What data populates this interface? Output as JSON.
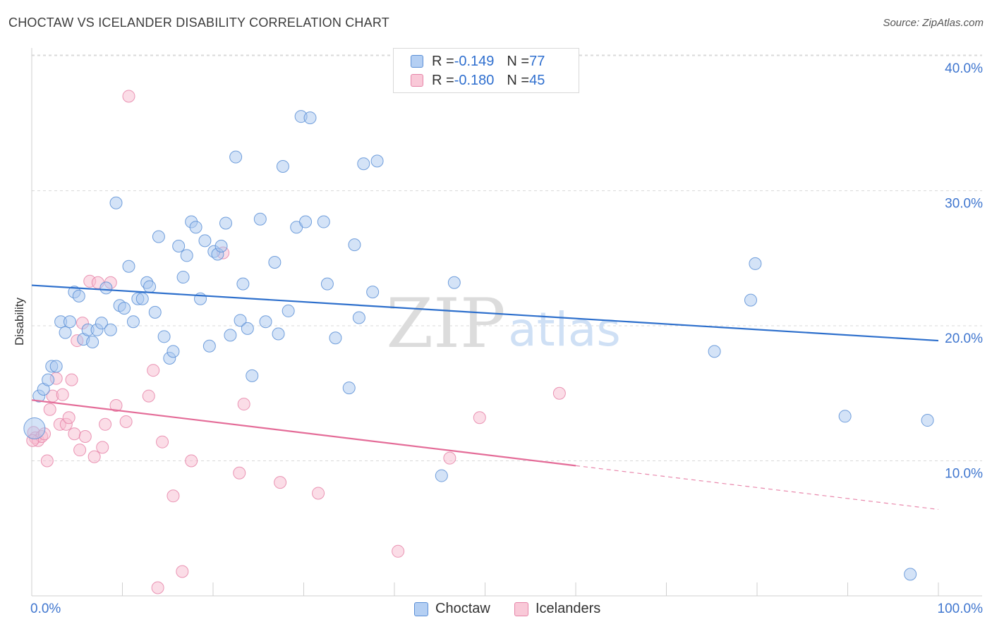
{
  "title": "CHOCTAW VS ICELANDER DISABILITY CORRELATION CHART",
  "source": "Source: ZipAtlas.com",
  "watermark": {
    "zip": "ZIP",
    "atlas": "atlas"
  },
  "legend": {
    "choctaw": {
      "r_label": "R = ",
      "r_value": "-0.149",
      "n_label": "N = ",
      "n_value": "77"
    },
    "icelanders": {
      "r_label": "R = ",
      "r_value": "-0.180",
      "n_label": "N = ",
      "n_value": "45"
    }
  },
  "colors": {
    "choctaw_fill": "#aac8f0",
    "choctaw_stroke": "#5b8fd6",
    "choctaw_line": "#2d6fcc",
    "icelanders_fill": "#f7bcd0",
    "icelanders_stroke": "#e684a8",
    "icelanders_line": "#e46c98",
    "axis_text": "#3f76cf",
    "grid": "#d9d9d9"
  },
  "chart_data": {
    "type": "scatter",
    "title": "CHOCTAW VS ICELANDER DISABILITY CORRELATION CHART",
    "xlabel": "",
    "ylabel": "Disability",
    "xlim": [
      0,
      100
    ],
    "ylim": [
      0,
      42
    ],
    "x_tick_labels": [
      "0.0%",
      "100.0%"
    ],
    "y_ticks": [
      10,
      20,
      30,
      40
    ],
    "y_tick_labels": [
      "10.0%",
      "20.0%",
      "30.0%",
      "40.0%"
    ],
    "series": [
      {
        "name": "Choctaw",
        "trend": {
          "x": [
            0,
            100
          ],
          "y": [
            23.0,
            18.9
          ],
          "dashed_from": null
        },
        "points": [
          [
            0.3,
            12.4
          ],
          [
            0.8,
            14.8
          ],
          [
            1.3,
            15.3
          ],
          [
            1.8,
            16.0
          ],
          [
            2.2,
            17.0
          ],
          [
            2.7,
            17.0
          ],
          [
            3.2,
            20.3
          ],
          [
            3.7,
            19.5
          ],
          [
            4.2,
            20.3
          ],
          [
            4.7,
            22.5
          ],
          [
            5.2,
            22.2
          ],
          [
            5.7,
            19.0
          ],
          [
            6.2,
            19.7
          ],
          [
            6.7,
            18.8
          ],
          [
            7.2,
            19.7
          ],
          [
            7.7,
            20.2
          ],
          [
            8.2,
            22.8
          ],
          [
            8.7,
            19.7
          ],
          [
            9.3,
            29.1
          ],
          [
            9.7,
            21.5
          ],
          [
            10.2,
            21.3
          ],
          [
            10.7,
            24.4
          ],
          [
            11.2,
            20.3
          ],
          [
            11.7,
            22.0
          ],
          [
            12.2,
            22.0
          ],
          [
            12.7,
            23.2
          ],
          [
            13.0,
            22.9
          ],
          [
            13.6,
            21.0
          ],
          [
            14.0,
            26.6
          ],
          [
            14.6,
            19.2
          ],
          [
            15.2,
            17.6
          ],
          [
            15.6,
            18.1
          ],
          [
            16.2,
            25.9
          ],
          [
            16.7,
            23.6
          ],
          [
            17.1,
            25.2
          ],
          [
            17.6,
            27.7
          ],
          [
            18.1,
            27.3
          ],
          [
            18.6,
            22.0
          ],
          [
            19.1,
            26.3
          ],
          [
            19.6,
            18.5
          ],
          [
            20.1,
            25.5
          ],
          [
            20.5,
            25.3
          ],
          [
            20.9,
            25.9
          ],
          [
            21.4,
            27.6
          ],
          [
            21.9,
            19.3
          ],
          [
            22.5,
            32.5
          ],
          [
            23.0,
            20.4
          ],
          [
            23.3,
            23.1
          ],
          [
            23.8,
            19.8
          ],
          [
            24.3,
            16.3
          ],
          [
            25.2,
            27.9
          ],
          [
            25.8,
            20.3
          ],
          [
            26.8,
            24.7
          ],
          [
            27.2,
            19.4
          ],
          [
            27.7,
            31.8
          ],
          [
            28.3,
            21.1
          ],
          [
            29.2,
            27.3
          ],
          [
            29.7,
            35.5
          ],
          [
            30.2,
            27.7
          ],
          [
            30.7,
            35.4
          ],
          [
            32.2,
            27.7
          ],
          [
            32.6,
            23.1
          ],
          [
            33.5,
            19.1
          ],
          [
            35.0,
            15.4
          ],
          [
            35.6,
            26.0
          ],
          [
            36.1,
            20.6
          ],
          [
            36.6,
            32.0
          ],
          [
            37.6,
            22.5
          ],
          [
            38.1,
            32.2
          ],
          [
            45.2,
            8.9
          ],
          [
            46.6,
            23.2
          ],
          [
            75.3,
            18.1
          ],
          [
            79.3,
            21.9
          ],
          [
            79.8,
            24.6
          ],
          [
            89.7,
            13.3
          ],
          [
            98.8,
            13.0
          ],
          [
            96.9,
            1.6
          ]
        ]
      },
      {
        "name": "Icelanders",
        "trend": {
          "x": [
            0,
            100
          ],
          "y": [
            14.5,
            6.4
          ],
          "dashed_from": 60
        },
        "points": [
          [
            0.2,
            12.1
          ],
          [
            0.4,
            11.7
          ],
          [
            0.7,
            11.5
          ],
          [
            1.1,
            11.8
          ],
          [
            1.4,
            12.0
          ],
          [
            1.7,
            10.0
          ],
          [
            2.0,
            13.8
          ],
          [
            2.3,
            14.8
          ],
          [
            2.7,
            16.1
          ],
          [
            3.1,
            12.7
          ],
          [
            3.4,
            14.9
          ],
          [
            3.8,
            12.7
          ],
          [
            4.1,
            13.2
          ],
          [
            4.4,
            16.0
          ],
          [
            4.7,
            12.0
          ],
          [
            5.0,
            18.9
          ],
          [
            5.3,
            10.8
          ],
          [
            5.6,
            20.2
          ],
          [
            5.9,
            11.8
          ],
          [
            6.4,
            23.3
          ],
          [
            6.9,
            10.3
          ],
          [
            7.3,
            23.2
          ],
          [
            7.8,
            11.0
          ],
          [
            8.1,
            12.7
          ],
          [
            8.7,
            23.2
          ],
          [
            9.3,
            14.1
          ],
          [
            10.4,
            12.9
          ],
          [
            10.7,
            37.0
          ],
          [
            12.9,
            14.8
          ],
          [
            13.4,
            16.7
          ],
          [
            13.9,
            0.6
          ],
          [
            14.4,
            11.4
          ],
          [
            15.6,
            7.4
          ],
          [
            16.6,
            1.8
          ],
          [
            17.6,
            10.0
          ],
          [
            21.1,
            25.4
          ],
          [
            22.9,
            9.1
          ],
          [
            23.4,
            14.2
          ],
          [
            27.4,
            8.4
          ],
          [
            31.6,
            7.6
          ],
          [
            40.4,
            3.3
          ],
          [
            46.1,
            10.2
          ],
          [
            49.4,
            13.2
          ],
          [
            58.2,
            15.0
          ],
          [
            0.1,
            11.5
          ]
        ]
      }
    ]
  }
}
